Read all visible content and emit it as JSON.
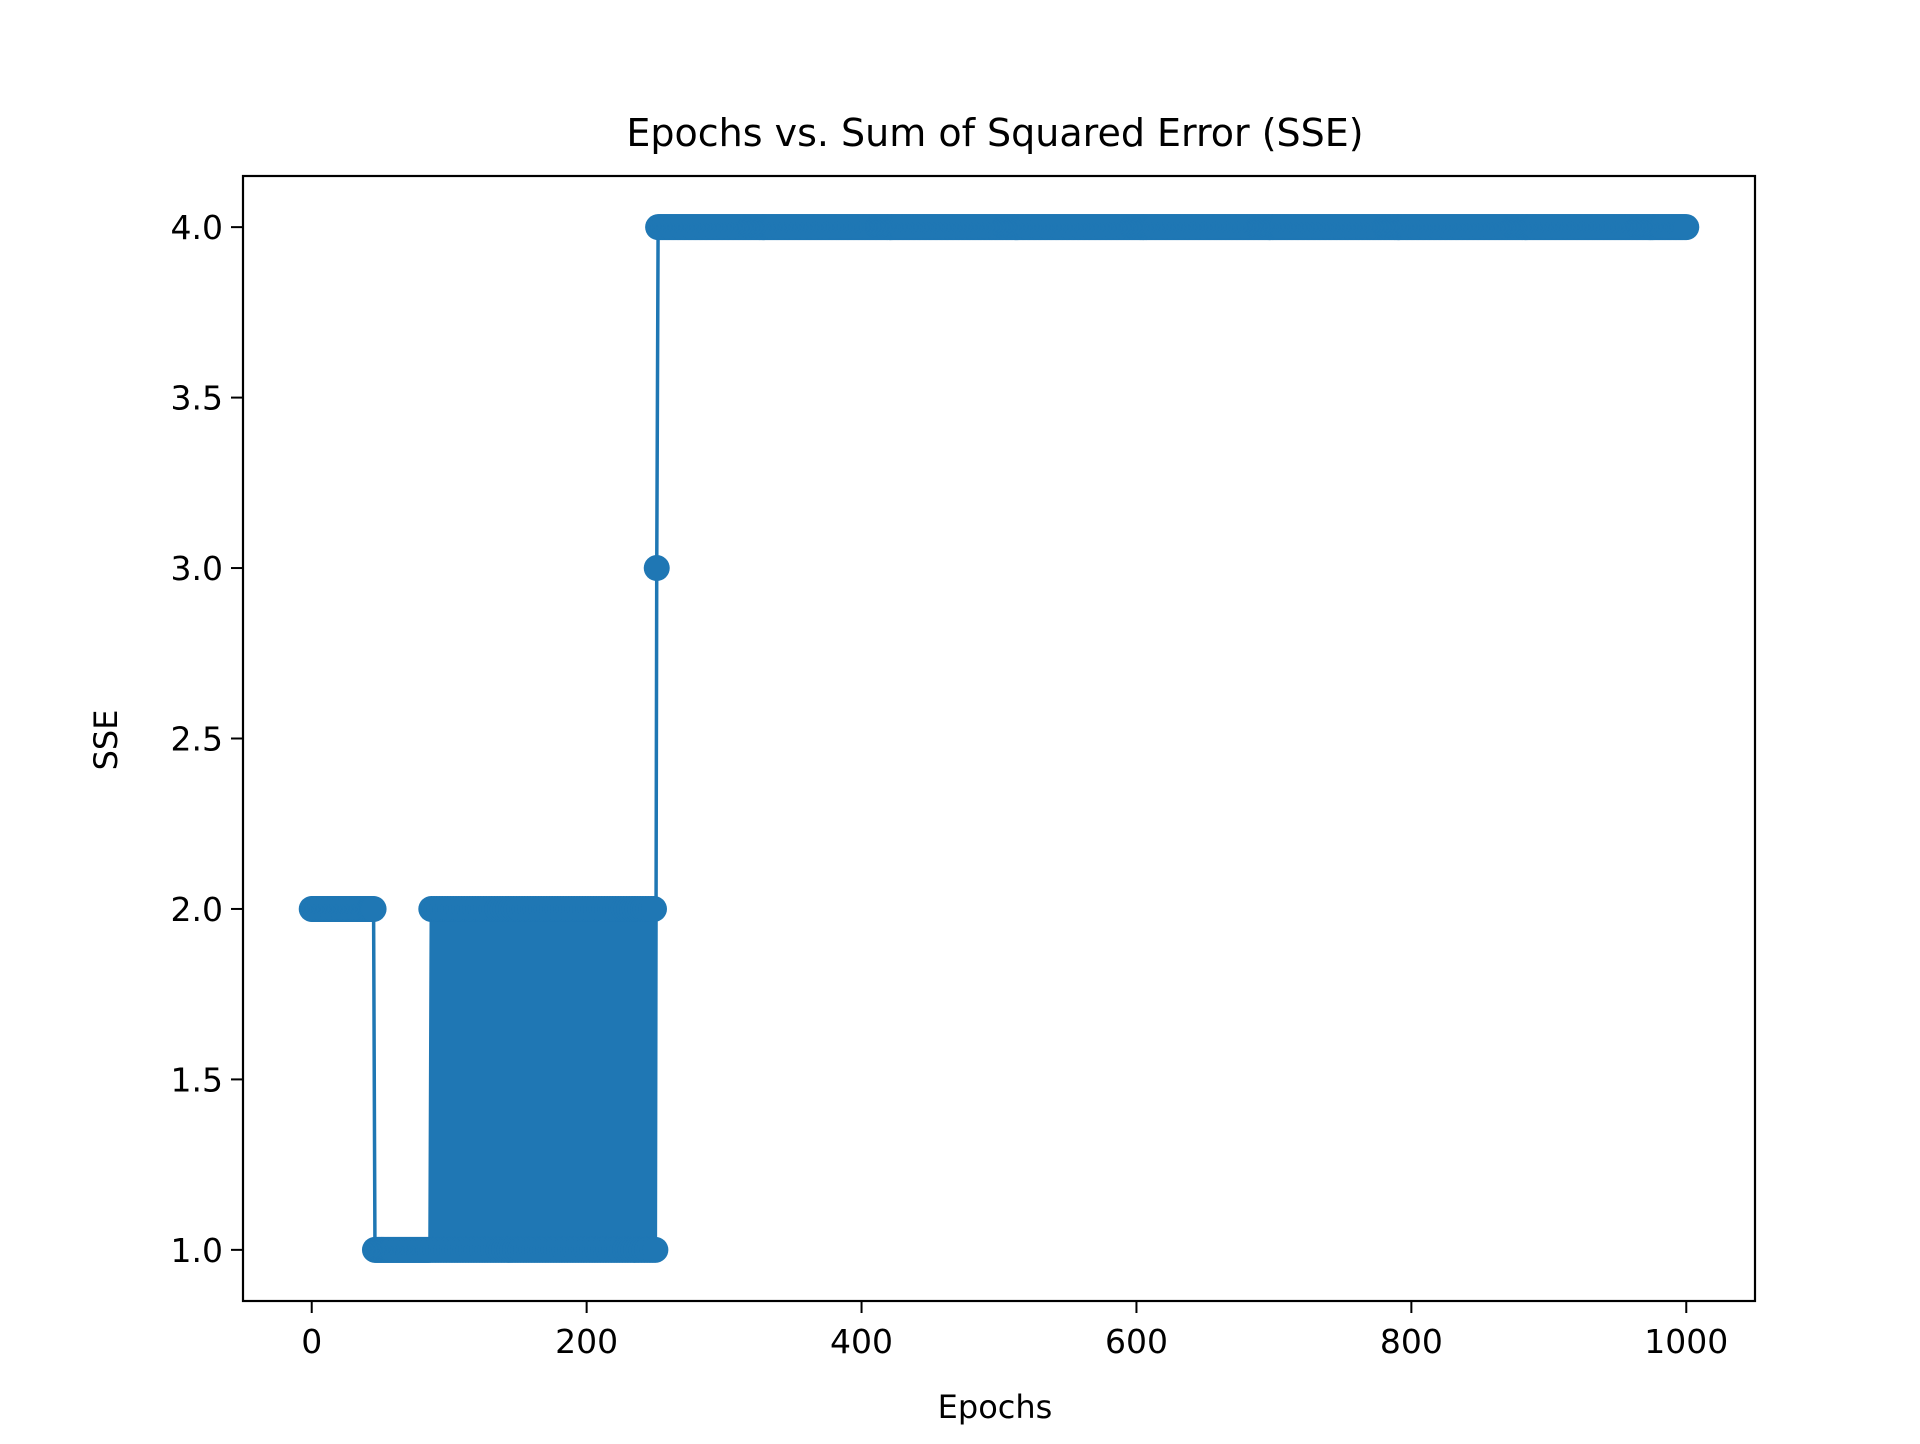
{
  "chart_data": {
    "type": "line",
    "title": "Epochs vs. Sum of Squared Error (SSE)",
    "xlabel": "Epochs",
    "ylabel": "SSE",
    "xlim": [
      -50,
      1050
    ],
    "ylim": [
      0.85,
      4.15
    ],
    "xticks": [
      0,
      200,
      400,
      600,
      800,
      1000
    ],
    "xtick_labels": [
      "0",
      "200",
      "400",
      "600",
      "800",
      "1000"
    ],
    "yticks": [
      1.0,
      1.5,
      2.0,
      2.5,
      3.0,
      3.5,
      4.0
    ],
    "ytick_labels": [
      "1.0",
      "1.5",
      "2.0",
      "2.5",
      "3.0",
      "3.5",
      "4.0"
    ],
    "grid": false,
    "legend": false,
    "marker": "circle",
    "color": "#1f77b4",
    "series": [
      {
        "segments": [
          {
            "x_start": 0,
            "x_end": 45,
            "value": 2,
            "pattern": "constant"
          },
          {
            "x_start": 46,
            "x_end": 85,
            "value": 1,
            "pattern": "constant"
          },
          {
            "x_start": 86,
            "x_end": 250,
            "values": [
              1,
              2
            ],
            "pattern": "alternating"
          },
          {
            "x_start": 251,
            "x_end": 251,
            "value": 3,
            "pattern": "constant"
          },
          {
            "x_start": 252,
            "x_end": 1000,
            "value": 4,
            "pattern": "constant"
          }
        ]
      }
    ]
  }
}
